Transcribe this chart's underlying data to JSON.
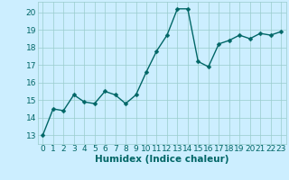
{
  "x": [
    0,
    1,
    2,
    3,
    4,
    5,
    6,
    7,
    8,
    9,
    10,
    11,
    12,
    13,
    14,
    15,
    16,
    17,
    18,
    19,
    20,
    21,
    22,
    23
  ],
  "y": [
    13.0,
    14.5,
    14.4,
    15.3,
    14.9,
    14.8,
    15.5,
    15.3,
    14.8,
    15.3,
    16.6,
    17.8,
    18.7,
    20.2,
    20.2,
    17.2,
    16.9,
    18.2,
    18.4,
    18.7,
    18.5,
    18.8,
    18.7,
    18.9
  ],
  "xlabel": "Humidex (Indice chaleur)",
  "ylabel": "",
  "ylim": [
    12.5,
    20.6
  ],
  "xlim": [
    -0.5,
    23.5
  ],
  "yticks": [
    13,
    14,
    15,
    16,
    17,
    18,
    19,
    20
  ],
  "xticks": [
    0,
    1,
    2,
    3,
    4,
    5,
    6,
    7,
    8,
    9,
    10,
    11,
    12,
    13,
    14,
    15,
    16,
    17,
    18,
    19,
    20,
    21,
    22,
    23
  ],
  "line_color": "#006666",
  "marker_color": "#006666",
  "bg_color": "#cceeff",
  "grid_color": "#99cccc",
  "font_color": "#006666",
  "xlabel_fontsize": 7.5,
  "tick_fontsize": 6.5,
  "linewidth": 1.0,
  "markersize": 2.5
}
